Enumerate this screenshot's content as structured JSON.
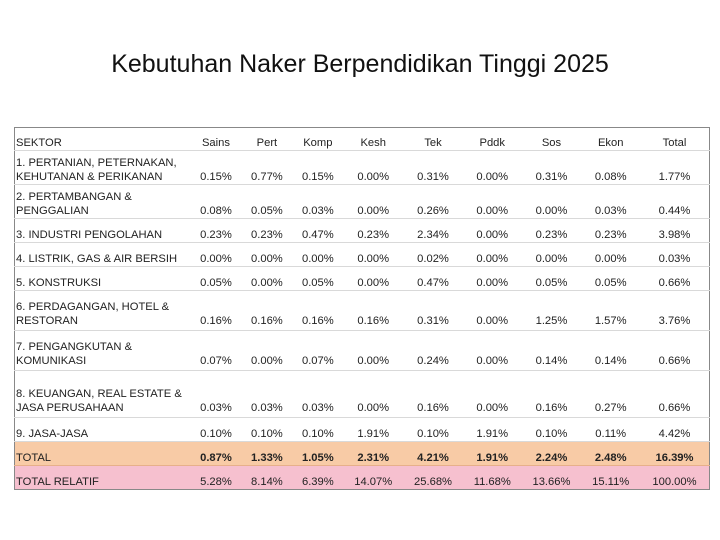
{
  "title": "Kebutuhan Naker Berpendidikan Tinggi 2025",
  "table": {
    "headers": [
      "SEKTOR",
      "Sains",
      "Pert",
      "Komp",
      "Kesh",
      "Tek",
      "Pddk",
      "Sos",
      "Ekon",
      "Total"
    ],
    "rows": [
      {
        "sector": "1. PERTANIAN, PETERNAKAN, KEHUTANAN & PERIKANAN",
        "values": [
          "0.15%",
          "0.77%",
          "0.15%",
          "0.00%",
          "0.31%",
          "0.00%",
          "0.31%",
          "0.08%",
          "1.77%"
        ]
      },
      {
        "sector": "2. PERTAMBANGAN & PENGGALIAN",
        "values": [
          "0.08%",
          "0.05%",
          "0.03%",
          "0.00%",
          "0.26%",
          "0.00%",
          "0.00%",
          "0.03%",
          "0.44%"
        ]
      },
      {
        "sector": "3. INDUSTRI PENGOLAHAN",
        "values": [
          "0.23%",
          "0.23%",
          "0.47%",
          "0.23%",
          "2.34%",
          "0.00%",
          "0.23%",
          "0.23%",
          "3.98%"
        ]
      },
      {
        "sector": "4. LISTRIK, GAS & AIR BERSIH",
        "values": [
          "0.00%",
          "0.00%",
          "0.00%",
          "0.00%",
          "0.02%",
          "0.00%",
          "0.00%",
          "0.00%",
          "0.03%"
        ]
      },
      {
        "sector": "5. KONSTRUKSI",
        "values": [
          "0.05%",
          "0.00%",
          "0.05%",
          "0.00%",
          "0.47%",
          "0.00%",
          "0.05%",
          "0.05%",
          "0.66%"
        ]
      },
      {
        "sector": "6. PERDAGANGAN, HOTEL & RESTORAN",
        "values": [
          "0.16%",
          "0.16%",
          "0.16%",
          "0.16%",
          "0.31%",
          "0.00%",
          "1.25%",
          "1.57%",
          "3.76%"
        ]
      },
      {
        "sector": "7. PENGANGKUTAN & KOMUNIKASI",
        "values": [
          "0.07%",
          "0.00%",
          "0.07%",
          "0.00%",
          "0.24%",
          "0.00%",
          "0.14%",
          "0.14%",
          "0.66%"
        ]
      },
      {
        "sector": "8.  KEUANGAN, REAL ESTATE & JASA PERUSAHAAN",
        "values": [
          "0.03%",
          "0.03%",
          "0.03%",
          "0.00%",
          "0.16%",
          "0.00%",
          "0.16%",
          "0.27%",
          "0.66%"
        ]
      },
      {
        "sector": "9. JASA-JASA",
        "values": [
          "0.10%",
          "0.10%",
          "0.10%",
          "1.91%",
          "0.10%",
          "1.91%",
          "0.10%",
          "0.11%",
          "4.42%"
        ]
      }
    ],
    "total": {
      "sector": "TOTAL",
      "values": [
        "0.87%",
        "1.33%",
        "1.05%",
        "2.31%",
        "4.21%",
        "1.91%",
        "2.24%",
        "2.48%",
        "16.39%"
      ]
    },
    "relatif": {
      "sector": "TOTAL RELATIF",
      "values": [
        "5.28%",
        "8.14%",
        "6.39%",
        "14.07%",
        "25.68%",
        "11.68%",
        "13.66%",
        "15.11%",
        "100.00%"
      ]
    }
  },
  "colors": {
    "total_row": "#f8cba6",
    "relatif_row": "#f6c0cf"
  }
}
